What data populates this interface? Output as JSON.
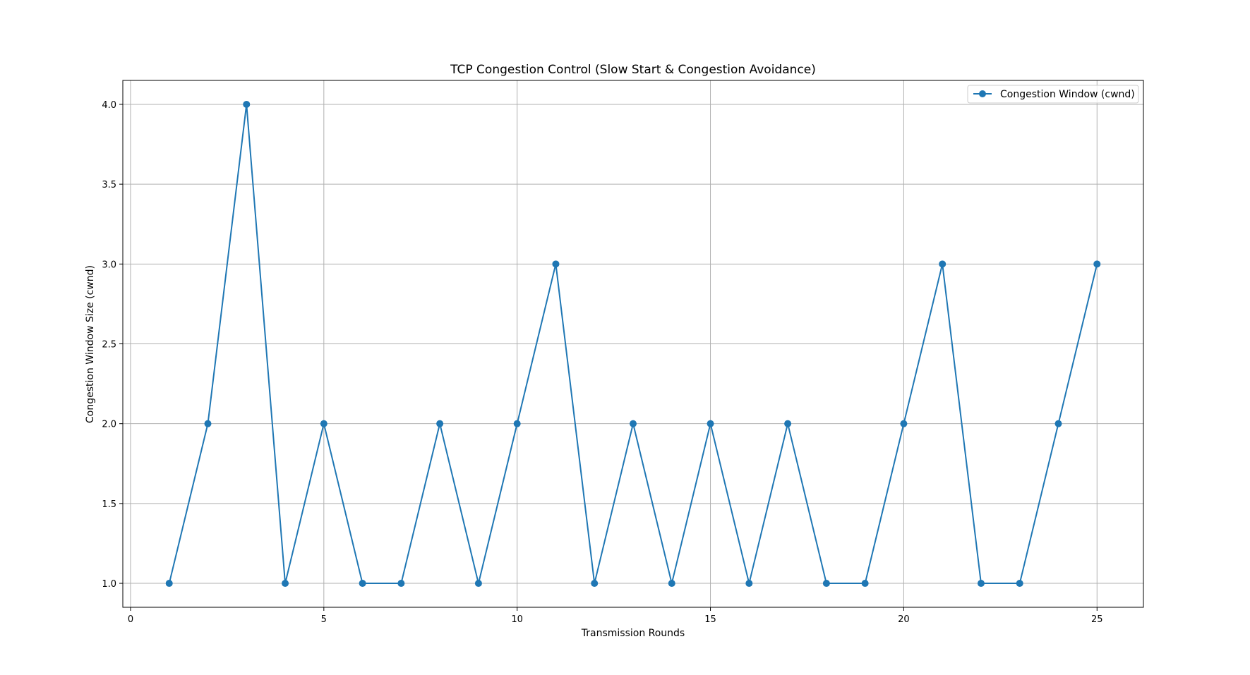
{
  "chart_data": {
    "type": "line",
    "title": "TCP Congestion Control (Slow Start & Congestion Avoidance)",
    "xlabel": "Transmission Rounds",
    "ylabel": "Congestion Window Size (cwnd)",
    "xlim": [
      -0.2,
      26.2
    ],
    "ylim": [
      0.85,
      4.15
    ],
    "xticks": [
      0,
      5,
      10,
      15,
      20,
      25
    ],
    "xtick_labels": [
      "0",
      "5",
      "10",
      "15",
      "20",
      "25"
    ],
    "yticks": [
      1.0,
      1.5,
      2.0,
      2.5,
      3.0,
      3.5,
      4.0
    ],
    "ytick_labels": [
      "1.0",
      "1.5",
      "2.0",
      "2.5",
      "3.0",
      "3.5",
      "4.0"
    ],
    "grid": true,
    "legend_position": "top-right",
    "series": [
      {
        "name": "Congestion Window (cwnd)",
        "color": "#1f77b4",
        "marker": "circle",
        "x": [
          1,
          2,
          3,
          4,
          5,
          6,
          7,
          8,
          9,
          10,
          11,
          12,
          13,
          14,
          15,
          16,
          17,
          18,
          19,
          20,
          21,
          22,
          23,
          24,
          25
        ],
        "values": [
          1,
          2,
          4,
          1,
          2,
          1,
          1,
          2,
          1,
          2,
          3,
          1,
          2,
          1,
          2,
          1,
          2,
          1,
          1,
          2,
          3,
          1,
          1,
          2,
          3
        ]
      }
    ]
  }
}
